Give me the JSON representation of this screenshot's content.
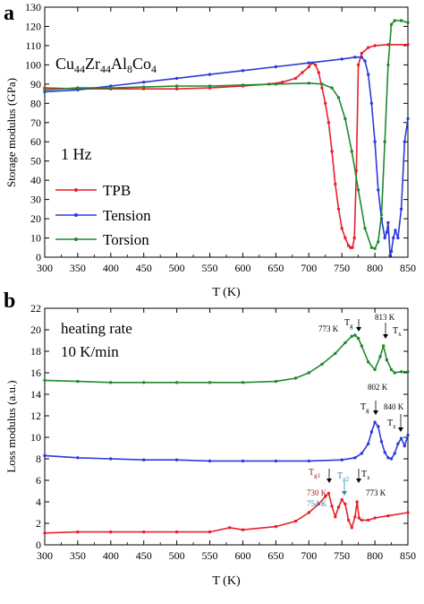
{
  "chart_data": [
    {
      "type": "line",
      "panel_label": "a",
      "xlabel": "T (K)",
      "ylabel": "Storage modulus (GPa)",
      "xlim": [
        300,
        850
      ],
      "ylim": [
        0,
        130
      ],
      "xticks": [
        300,
        350,
        400,
        450,
        500,
        550,
        600,
        650,
        700,
        750,
        800,
        850
      ],
      "yticks": [
        0,
        10,
        20,
        30,
        40,
        50,
        60,
        70,
        80,
        90,
        100,
        110,
        120,
        130
      ],
      "grid": false,
      "legend_position": "bottom-left",
      "annotations": {
        "composition": [
          "Cu",
          "44",
          "Zr",
          "44",
          "Al",
          "8",
          "Co",
          "4"
        ],
        "frequency": "1 Hz"
      },
      "series": [
        {
          "name": "TPB",
          "color": "#e8202a",
          "x": [
            300,
            350,
            400,
            450,
            500,
            550,
            600,
            640,
            660,
            680,
            690,
            700,
            705,
            710,
            715,
            720,
            725,
            730,
            735,
            740,
            745,
            750,
            755,
            760,
            763,
            766,
            769,
            772,
            775,
            780,
            790,
            800,
            820,
            850
          ],
          "y": [
            88,
            87.5,
            87.5,
            87.5,
            87.5,
            88,
            89,
            90,
            91,
            93,
            96,
            99,
            101,
            100,
            96,
            88,
            80,
            70,
            55,
            38,
            25,
            15,
            10,
            6,
            5,
            5,
            10,
            45,
            100,
            106,
            109,
            110,
            110.5,
            110.5
          ]
        },
        {
          "name": "Tension",
          "color": "#2b3bd9",
          "x": [
            300,
            350,
            400,
            450,
            500,
            550,
            600,
            650,
            700,
            750,
            770,
            780,
            785,
            790,
            795,
            800,
            805,
            810,
            815,
            818,
            820,
            823,
            825,
            828,
            831,
            835,
            840,
            845,
            850
          ],
          "y": [
            86,
            87,
            89,
            91,
            93,
            95,
            97,
            99,
            101,
            103,
            104,
            104,
            102,
            95,
            80,
            60,
            35,
            20,
            10,
            13,
            18,
            1,
            3,
            10,
            14,
            10,
            25,
            60,
            72
          ]
        },
        {
          "name": "Torsion",
          "color": "#1e8a2c",
          "x": [
            300,
            350,
            400,
            450,
            500,
            550,
            600,
            650,
            700,
            720,
            735,
            745,
            755,
            765,
            775,
            785,
            795,
            800,
            805,
            810,
            815,
            820,
            825,
            830,
            840,
            850
          ],
          "y": [
            87,
            88,
            88,
            88.5,
            89,
            89,
            89.5,
            90,
            90.5,
            90,
            88,
            83,
            72,
            55,
            35,
            15,
            5,
            4.5,
            8,
            22,
            60,
            100,
            121,
            123,
            123,
            122
          ]
        }
      ]
    },
    {
      "type": "line",
      "panel_label": "b",
      "xlabel": "T (K)",
      "ylabel": "Loss modulus (a.u.)",
      "xlim": [
        300,
        850
      ],
      "ylim": [
        0,
        22
      ],
      "xticks": [
        300,
        350,
        400,
        450,
        500,
        550,
        600,
        650,
        700,
        750,
        800,
        850
      ],
      "yticks": [
        0,
        2,
        4,
        6,
        8,
        10,
        12,
        14,
        16,
        18,
        20,
        22
      ],
      "grid": false,
      "legend_position": "none",
      "annotations": {
        "rate_line1": "heating rate",
        "rate_line2": "10 K/min"
      },
      "series": [
        {
          "color": "#e8202a",
          "x": [
            300,
            350,
            400,
            450,
            500,
            550,
            580,
            600,
            650,
            680,
            700,
            715,
            725,
            730,
            735,
            740,
            745,
            750,
            755,
            760,
            765,
            770,
            773,
            776,
            780,
            790,
            800,
            820,
            850
          ],
          "y": [
            1.1,
            1.2,
            1.2,
            1.2,
            1.2,
            1.2,
            1.6,
            1.4,
            1.7,
            2.2,
            3.0,
            3.8,
            4.5,
            4.8,
            3.6,
            2.6,
            3.5,
            4.2,
            3.8,
            2.3,
            1.6,
            2.6,
            4.0,
            2.5,
            2.3,
            2.3,
            2.5,
            2.7,
            3.0
          ]
        },
        {
          "color": "#2b3bd9",
          "x": [
            300,
            350,
            400,
            450,
            500,
            550,
            600,
            650,
            700,
            750,
            770,
            780,
            790,
            795,
            800,
            805,
            810,
            815,
            820,
            825,
            830,
            835,
            840,
            845,
            850
          ],
          "y": [
            8.3,
            8.1,
            8.0,
            7.9,
            7.9,
            7.8,
            7.8,
            7.8,
            7.8,
            7.9,
            8.1,
            8.5,
            9.4,
            10.5,
            11.4,
            11.0,
            9.6,
            8.6,
            8.1,
            8.0,
            8.5,
            9.4,
            9.9,
            9.2,
            10.2
          ]
        },
        {
          "color": "#1e8a2c",
          "x": [
            300,
            350,
            400,
            450,
            500,
            550,
            600,
            650,
            680,
            700,
            720,
            740,
            755,
            765,
            770,
            775,
            780,
            790,
            800,
            808,
            813,
            818,
            825,
            830,
            840,
            850
          ],
          "y": [
            15.3,
            15.2,
            15.1,
            15.1,
            15.1,
            15.1,
            15.1,
            15.2,
            15.5,
            16.0,
            16.8,
            17.8,
            18.8,
            19.4,
            19.5,
            19.2,
            18.5,
            17.0,
            16.3,
            17.5,
            18.5,
            17.2,
            16.3,
            16.0,
            16.1,
            16.1
          ]
        }
      ],
      "transition_labels": {
        "green_tg_value": "773 K",
        "green_tg_label": "T",
        "green_tg_sub": "g",
        "green_tx_value": "813 K",
        "green_tx_label": "T",
        "green_tx_sub": "x",
        "blue_tg_value": "802 K",
        "blue_tg_label": "T",
        "blue_tg_sub": "g",
        "blue_tx_value": "840 K",
        "blue_tx_label": "T",
        "blue_tx_sub": "x",
        "red_tg1_value": "730 K",
        "red_tg1_label": "T",
        "red_tg1_sub": "g1",
        "red_tg2_value": "754 K",
        "red_tg2_label": "T",
        "red_tg2_sub": "g2",
        "red_tx_value": "773 K",
        "red_tx_label": "T",
        "red_tx_sub": "x",
        "teal_color": "#2a8fa6",
        "darkred_color": "#a8141e"
      }
    }
  ]
}
